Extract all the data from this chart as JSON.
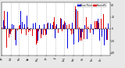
{
  "background_color": "#e8e8e8",
  "plot_bg_color": "#ffffff",
  "ylim": [
    -45,
    45
  ],
  "ytick_fontsize": 2.2,
  "xtick_fontsize": 1.8,
  "legend_fontsize": 2.2,
  "num_points": 365,
  "seed": 42,
  "blue_color": "#0000dd",
  "red_color": "#dd0000",
  "grid_color": "#bbbbbb",
  "legend_blue_label": "Dew Point",
  "legend_red_label": "Humid%",
  "month_starts": [
    0,
    31,
    59,
    90,
    120,
    151,
    181,
    212,
    243,
    273,
    304,
    334
  ],
  "month_labels": [
    "Jan",
    "Feb",
    "Mar",
    "Apr",
    "May",
    "Jun",
    "Jul",
    "Aug",
    "Sep",
    "Oct",
    "Nov",
    "Dec"
  ],
  "yticks": [
    -40,
    -20,
    0,
    20,
    40
  ],
  "ytick_labels": [
    "-40",
    "-20",
    "0",
    "20",
    "40"
  ]
}
